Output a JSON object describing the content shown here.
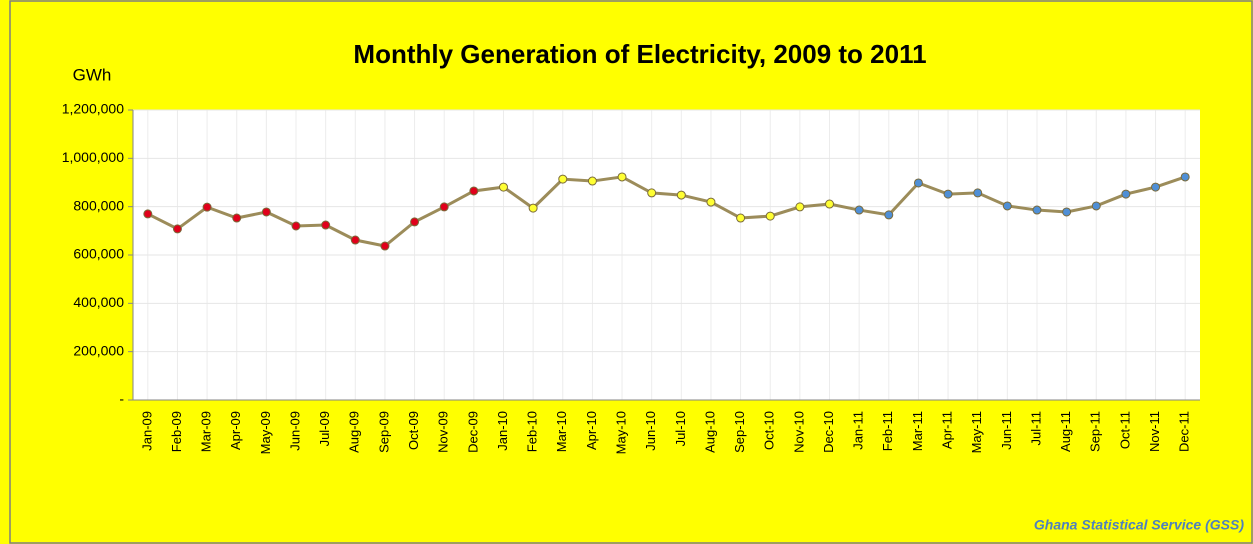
{
  "chart_data": {
    "type": "line",
    "title": "Monthly Generation of Electricity, 2009 to 2011",
    "ylabel": "GWh",
    "source": "Ghana Statistical Service (GSS)",
    "categories": [
      "Jan-09",
      "Feb-09",
      "Mar-09",
      "Apr-09",
      "May-09",
      "Jun-09",
      "Jul-09",
      "Aug-09",
      "Sep-09",
      "Oct-09",
      "Nov-09",
      "Dec-09",
      "Jan-10",
      "Feb-10",
      "Mar-10",
      "Apr-10",
      "May-10",
      "Jun-10",
      "Jul-10",
      "Aug-10",
      "Sep-10",
      "Oct-10",
      "Nov-10",
      "Dec-10",
      "Jan-11",
      "Feb-11",
      "Mar-11",
      "Apr-11",
      "May-11",
      "Jun-11",
      "Jul-11",
      "Aug-11",
      "Sep-11",
      "Oct-11",
      "Nov-11",
      "Dec-11"
    ],
    "series": [
      {
        "color": "#9c8c5a",
        "values": [
          770000,
          708000,
          798000,
          753000,
          778000,
          720000,
          724000,
          662000,
          637000,
          737000,
          799000,
          865000,
          881000,
          794000,
          914000,
          906000,
          923000,
          857000,
          848000,
          819000,
          753000,
          761000,
          799000,
          811000,
          786000,
          766000,
          898000,
          852000,
          857000,
          803000,
          786000,
          778000,
          803000,
          852000,
          881000,
          923000
        ],
        "marker_colors": [
          "#e0001b",
          "#e0001b",
          "#e0001b",
          "#e0001b",
          "#e0001b",
          "#e0001b",
          "#e0001b",
          "#e0001b",
          "#e0001b",
          "#e0001b",
          "#e0001b",
          "#e0001b",
          "#ffff33",
          "#ffff33",
          "#ffff33",
          "#ffff33",
          "#ffff33",
          "#ffff33",
          "#ffff33",
          "#ffff33",
          "#ffff33",
          "#ffff33",
          "#ffff33",
          "#ffff33",
          "#4f8fd6",
          "#4f8fd6",
          "#4f8fd6",
          "#4f8fd6",
          "#4f8fd6",
          "#4f8fd6",
          "#4f8fd6",
          "#4f8fd6",
          "#4f8fd6",
          "#4f8fd6",
          "#4f8fd6",
          "#4f8fd6"
        ]
      }
    ],
    "ylim": [
      0,
      1200000
    ],
    "yticks": [
      {
        "value": 0,
        "label": "-"
      },
      {
        "value": 200000,
        "label": "200,000"
      },
      {
        "value": 400000,
        "label": "400,000"
      },
      {
        "value": 600000,
        "label": "600,000"
      },
      {
        "value": 800000,
        "label": "800,000"
      },
      {
        "value": 1000000,
        "label": "1,000,000"
      },
      {
        "value": 1200000,
        "label": "1,200,000"
      }
    ],
    "grid": true
  }
}
